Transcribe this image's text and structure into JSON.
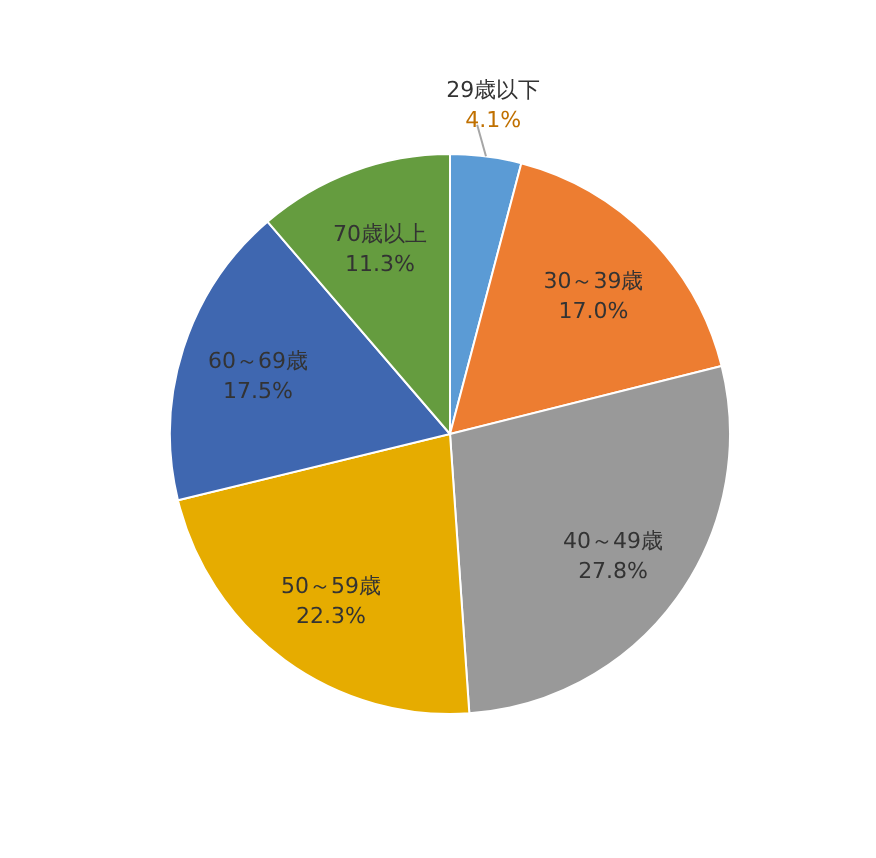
{
  "chart_data": {
    "type": "pie",
    "categories": [
      "29歳以下",
      "30～39歳",
      "40～49歳",
      "50～59歳",
      "60～69歳",
      "70歳以上"
    ],
    "values": [
      4.1,
      17.0,
      27.8,
      22.3,
      17.5,
      11.3
    ],
    "value_labels": [
      "4.1%",
      "17.0%",
      "27.8%",
      "22.3%",
      "17.5%",
      "11.3%"
    ],
    "colors": [
      "#5b9bd5",
      "#ed7d31",
      "#999999",
      "#e6ac00",
      "#3f67b0",
      "#659c3f"
    ],
    "legend": false
  }
}
